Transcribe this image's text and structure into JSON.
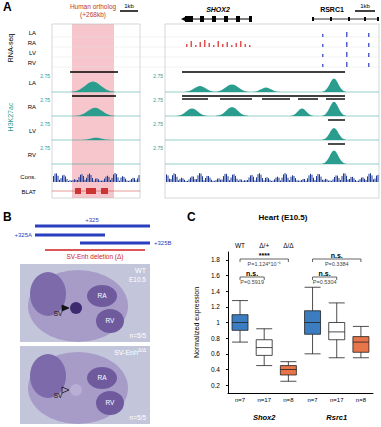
{
  "panel_labels": [
    "A",
    "B",
    "C"
  ],
  "panel_a": {
    "scale_bar": "1kb",
    "ortholog_label": "Human ortholog",
    "ortholog_offset": "(+268kb)",
    "genes": [
      "SHOX2",
      "RSRC1"
    ],
    "rnaseq_label": "RNA-seq",
    "chip_label": "H3K27ac",
    "tracks": [
      "LA",
      "RA",
      "LV",
      "RV"
    ],
    "chip_max": "2.75",
    "extra_tracks": [
      "Cons.",
      "BLAT"
    ]
  },
  "panel_b": {
    "constructs": [
      "+325",
      "+325A",
      "+325B"
    ],
    "deletion_label": "SV-Enh deletion (Δ)",
    "embryos": [
      {
        "genotype": "WT",
        "stage": "E10.5",
        "structures": [
          "SV",
          "RA",
          "RV"
        ],
        "count": "n=5/5"
      },
      {
        "genotype": "SV-Enh",
        "genotype_superscript": "Δ/Δ",
        "structures": [
          "SV",
          "RA",
          "RV"
        ],
        "count": "n=5/5"
      }
    ]
  },
  "chart_data": {
    "type": "boxplot",
    "title": "Heart (E10.5)",
    "y_label": "Normalized expression",
    "categories": [
      "Shox2",
      "Rsrc1"
    ],
    "series": [
      {
        "name": "WT",
        "color": "#3b7dc0",
        "values": [
          [
            0.75,
            0.9,
            1.0,
            1.1,
            1.28
          ],
          [
            0.6,
            0.85,
            1.0,
            1.15,
            1.45
          ]
        ],
        "n_labels": [
          "n=7",
          "n=7"
        ]
      },
      {
        "name": "Δ/+",
        "color": "#ffffff",
        "values": [
          [
            0.45,
            0.58,
            0.68,
            0.78,
            0.92
          ],
          [
            0.55,
            0.78,
            0.88,
            1.0,
            1.25
          ]
        ],
        "n_labels": [
          "n=17",
          "n=17"
        ]
      },
      {
        "name": "Δ/Δ",
        "color": "#e8744a",
        "values": [
          [
            0.25,
            0.33,
            0.4,
            0.45,
            0.5
          ],
          [
            0.55,
            0.62,
            0.75,
            0.82,
            0.95
          ]
        ],
        "n_labels": [
          "n=8",
          "n=8"
        ]
      }
    ],
    "ylim": [
      0.1,
      1.9
    ],
    "yticks": [
      0.2,
      0.4,
      0.6,
      0.8,
      1.0,
      1.2,
      1.4,
      1.6,
      1.8
    ],
    "grid": false,
    "comparisons": [
      {
        "category": "Shox2",
        "from": "WT",
        "to": "Δ/Δ",
        "label": "****",
        "p": "P=1.124*10⁻⁶"
      },
      {
        "category": "Shox2",
        "from": "WT",
        "to": "Δ/+",
        "label": "n.s.",
        "p": "P=0.5919"
      },
      {
        "category": "Rsrc1",
        "from": "WT",
        "to": "Δ/Δ",
        "label": "n.s.",
        "p": "P=0.3384"
      },
      {
        "category": "Rsrc1",
        "from": "WT",
        "to": "Δ/+",
        "label": "n.s.",
        "p": "P=0.5304"
      }
    ]
  }
}
